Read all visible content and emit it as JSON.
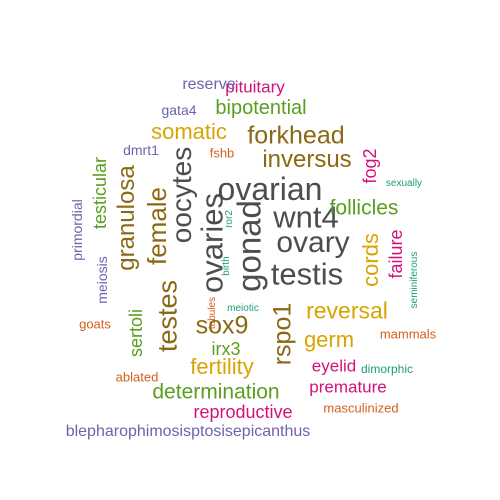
{
  "colors": {
    "gray": "#4d4d4d",
    "olive": "#8b6914",
    "gold": "#d9a400",
    "green": "#5a9e1f",
    "orange": "#d4601a",
    "magenta": "#d4117a",
    "purple": "#6b63ad",
    "teal": "#1d9e78"
  },
  "words": [
    {
      "text": "ovarian",
      "color": "gray"
    },
    {
      "text": "wnt4",
      "color": "gray"
    },
    {
      "text": "ovary",
      "color": "gray"
    },
    {
      "text": "testis",
      "color": "gray"
    },
    {
      "text": "gonad",
      "color": "gray"
    },
    {
      "text": "ovaries",
      "color": "gray"
    },
    {
      "text": "oocytes",
      "color": "gray"
    },
    {
      "text": "female",
      "color": "olive"
    },
    {
      "text": "granulosa",
      "color": "olive"
    },
    {
      "text": "testes",
      "color": "olive"
    },
    {
      "text": "sox9",
      "color": "olive"
    },
    {
      "text": "rspo1",
      "color": "olive"
    },
    {
      "text": "inversus",
      "color": "olive"
    },
    {
      "text": "forkhead",
      "color": "olive"
    },
    {
      "text": "somatic",
      "color": "gold"
    },
    {
      "text": "reversal",
      "color": "gold"
    },
    {
      "text": "germ",
      "color": "gold"
    },
    {
      "text": "fertility",
      "color": "gold"
    },
    {
      "text": "cords",
      "color": "gold"
    },
    {
      "text": "bipotential",
      "color": "green"
    },
    {
      "text": "follicles",
      "color": "green"
    },
    {
      "text": "testicular",
      "color": "green"
    },
    {
      "text": "sertoli",
      "color": "green"
    },
    {
      "text": "irx3",
      "color": "green"
    },
    {
      "text": "determination",
      "color": "green"
    },
    {
      "text": "fog2",
      "color": "magenta"
    },
    {
      "text": "failure",
      "color": "magenta"
    },
    {
      "text": "pituitary",
      "color": "magenta"
    },
    {
      "text": "eyelid",
      "color": "magenta"
    },
    {
      "text": "premature",
      "color": "magenta"
    },
    {
      "text": "reproductive",
      "color": "magenta"
    },
    {
      "text": "reserve",
      "color": "purple"
    },
    {
      "text": "gata4",
      "color": "purple"
    },
    {
      "text": "dmrt1",
      "color": "purple"
    },
    {
      "text": "primordial",
      "color": "purple"
    },
    {
      "text": "meiosis",
      "color": "purple"
    },
    {
      "text": "blepharophimosisptosisepicanthus",
      "color": "purple"
    },
    {
      "text": "fshb",
      "color": "orange"
    },
    {
      "text": "goats",
      "color": "orange"
    },
    {
      "text": "tubules",
      "color": "orange"
    },
    {
      "text": "ablated",
      "color": "orange"
    },
    {
      "text": "mammals",
      "color": "orange"
    },
    {
      "text": "masculinized",
      "color": "orange"
    },
    {
      "text": "sexually",
      "color": "teal"
    },
    {
      "text": "ror2",
      "color": "teal"
    },
    {
      "text": "birth",
      "color": "teal"
    },
    {
      "text": "meiotic",
      "color": "teal"
    },
    {
      "text": "seminiferous",
      "color": "teal"
    },
    {
      "text": "dimorphic",
      "color": "teal"
    }
  ]
}
